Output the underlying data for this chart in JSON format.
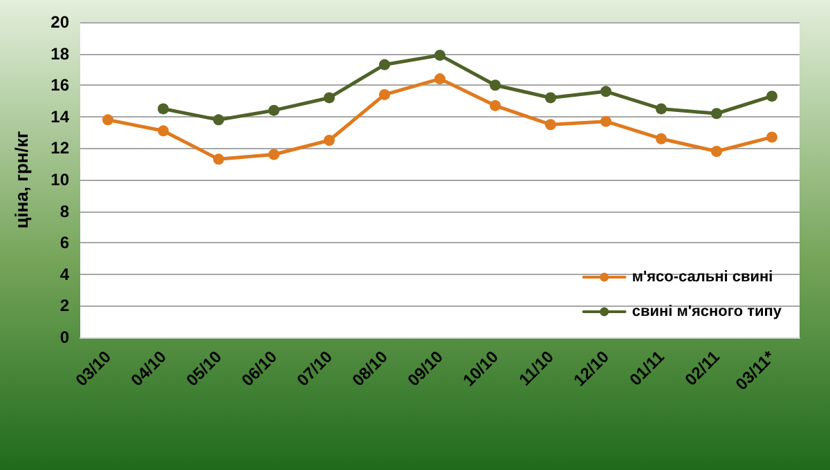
{
  "chart_data": {
    "type": "line",
    "ylabel": "ціна, грн/кг",
    "categories": [
      "03/10",
      "04/10",
      "05/10",
      "06/10",
      "07/10",
      "08/10",
      "09/10",
      "10/10",
      "11/10",
      "12/10",
      "01/11",
      "02/11",
      "03/11*"
    ],
    "series": [
      {
        "name": "м'ясо-сальні свині",
        "color": "#e07a1f",
        "values": [
          13.8,
          13.1,
          11.3,
          11.6,
          12.5,
          15.4,
          16.4,
          14.7,
          13.5,
          13.7,
          12.6,
          11.8,
          12.7
        ]
      },
      {
        "name": "свині м'ясного типу",
        "color": "#4f6228",
        "values": [
          null,
          14.5,
          13.8,
          14.4,
          15.2,
          17.3,
          17.9,
          16.0,
          15.2,
          15.6,
          14.5,
          14.2,
          15.3
        ]
      }
    ],
    "ylim": [
      0,
      20
    ],
    "yticks": [
      0,
      2,
      4,
      6,
      8,
      10,
      12,
      14,
      16,
      18,
      20
    ],
    "grid": "y",
    "legend": "bottom right",
    "marker": "circle",
    "line_style": "solid"
  }
}
